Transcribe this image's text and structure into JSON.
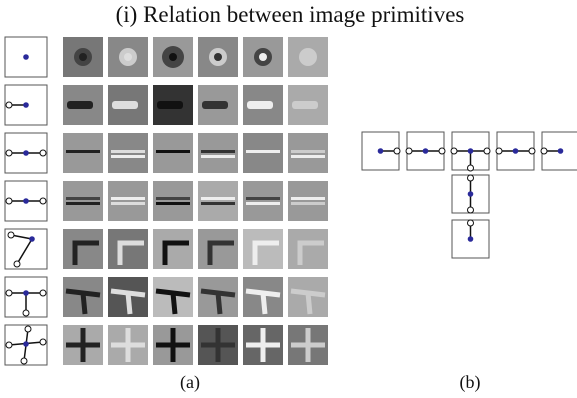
{
  "title": "(i) Relation between image primitives",
  "captions": [
    "(a)",
    "(b)"
  ]
}
